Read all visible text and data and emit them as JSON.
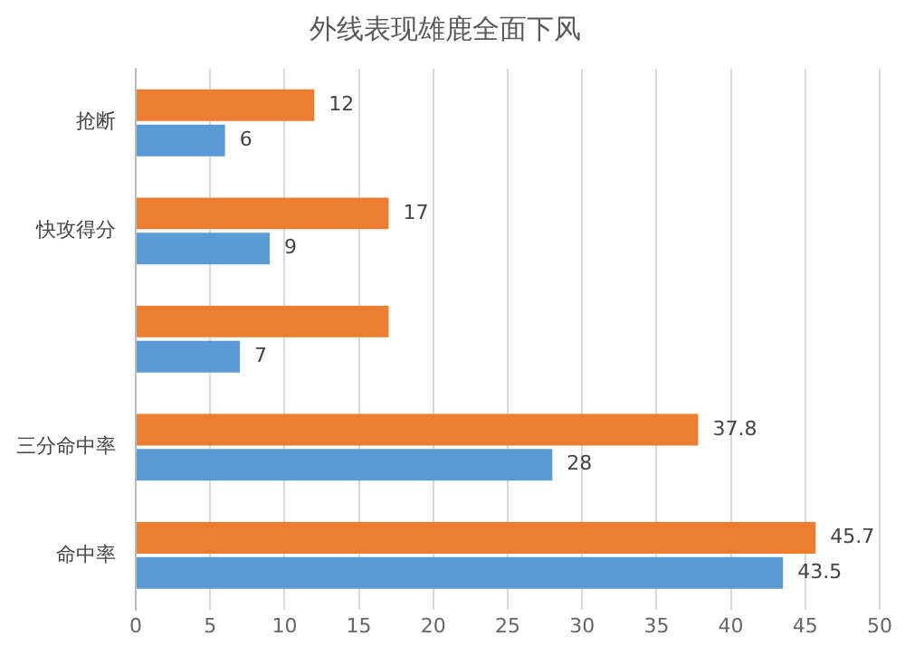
{
  "chart_data": {
    "type": "bar",
    "orientation": "horizontal",
    "title": "外线表现雄鹿全面下风",
    "categories": [
      "抢断",
      "快攻得分",
      null,
      "三分命中率",
      "命中率"
    ],
    "series": [
      {
        "color": "#ed7d31",
        "values": [
          12,
          17,
          17,
          37.8,
          45.7
        ],
        "value_labels": [
          "12",
          "17",
          null,
          "37.8",
          "45.7"
        ]
      },
      {
        "color": "#5b9bd5",
        "values": [
          6,
          9,
          7,
          28,
          43.5
        ],
        "value_labels": [
          "6",
          "9",
          "7",
          "28",
          "43.5"
        ]
      }
    ],
    "xlim": [
      0,
      50
    ],
    "xticks": [
      0,
      5,
      10,
      15,
      20,
      25,
      30,
      35,
      40,
      45,
      50
    ],
    "grid": "x",
    "legend": false
  }
}
